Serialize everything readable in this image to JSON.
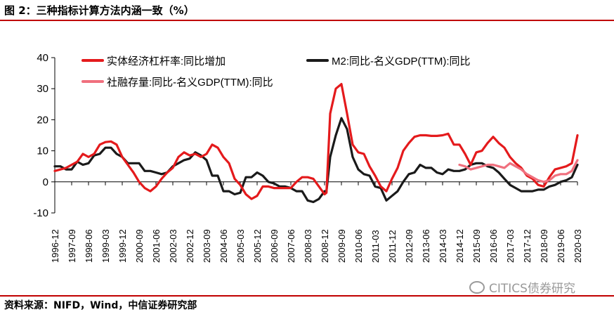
{
  "figure": {
    "title": "图 2：三种指标计算方法内涵一致（%）",
    "source": "资料来源：NIFD，Wind，中信证券研究部",
    "watermark": "CITICS债券研究"
  },
  "chart_data": {
    "type": "line",
    "x_ticks": [
      "1996-12",
      "1997-09",
      "1998-06",
      "1999-03",
      "1999-12",
      "2000-09",
      "2001-06",
      "2002-03",
      "2002-12",
      "2003-09",
      "2004-06",
      "2005-03",
      "2005-12",
      "2006-09",
      "2007-06",
      "2008-03",
      "2008-12",
      "2009-09",
      "2010-06",
      "2011-03",
      "2011-12",
      "2012-09",
      "2013-06",
      "2014-03",
      "2014-12",
      "2015-09",
      "2016-06",
      "2017-03",
      "2017-12",
      "2018-09",
      "2019-06",
      "2020-03"
    ],
    "x_range": [
      "1996-12",
      "2020-03"
    ],
    "ylim": [
      -10,
      40
    ],
    "y_ticks": [
      -10,
      0,
      10,
      20,
      30,
      40
    ],
    "legend_position": "top",
    "series": [
      {
        "name": "实体经济杠杆率:同比增加",
        "color": "#e41a1c",
        "points": [
          [
            "1996-12",
            3.5
          ],
          [
            "1997-06",
            4.5
          ],
          [
            "1997-12",
            6.5
          ],
          [
            "1998-03",
            9
          ],
          [
            "1998-06",
            8
          ],
          [
            "1998-09",
            9
          ],
          [
            "1998-12",
            12
          ],
          [
            "1999-03",
            12.8
          ],
          [
            "1999-06",
            13
          ],
          [
            "1999-09",
            12
          ],
          [
            "1999-12",
            8
          ],
          [
            "2000-03",
            5.5
          ],
          [
            "2000-06",
            3
          ],
          [
            "2000-09",
            0
          ],
          [
            "2000-12",
            -2
          ],
          [
            "2001-03",
            -3
          ],
          [
            "2001-06",
            -1.5
          ],
          [
            "2001-09",
            1
          ],
          [
            "2001-12",
            3
          ],
          [
            "2002-03",
            4.5
          ],
          [
            "2002-06",
            8
          ],
          [
            "2002-09",
            9.5
          ],
          [
            "2002-12",
            8.5
          ],
          [
            "2003-03",
            9
          ],
          [
            "2003-06",
            8
          ],
          [
            "2003-09",
            9
          ],
          [
            "2003-12",
            12
          ],
          [
            "2004-03",
            11
          ],
          [
            "2004-06",
            8
          ],
          [
            "2004-09",
            6
          ],
          [
            "2004-12",
            1
          ],
          [
            "2005-03",
            -1
          ],
          [
            "2005-06",
            -4
          ],
          [
            "2005-09",
            -5.5
          ],
          [
            "2005-12",
            -4.5
          ],
          [
            "2006-03",
            -1.5
          ],
          [
            "2006-06",
            -1.5
          ],
          [
            "2006-09",
            -2
          ],
          [
            "2006-12",
            -2
          ],
          [
            "2007-03",
            -2
          ],
          [
            "2007-06",
            -2
          ],
          [
            "2007-09",
            0
          ],
          [
            "2007-12",
            1.5
          ],
          [
            "2008-03",
            1.5
          ],
          [
            "2008-06",
            1
          ],
          [
            "2008-09",
            -1.5
          ],
          [
            "2008-12",
            -4
          ],
          [
            "2009-01",
            -3.5
          ],
          [
            "2009-03",
            22
          ],
          [
            "2009-06",
            30
          ],
          [
            "2009-09",
            31.5
          ],
          [
            "2009-12",
            22
          ],
          [
            "2010-03",
            12
          ],
          [
            "2010-06",
            9.5
          ],
          [
            "2010-09",
            9
          ],
          [
            "2010-12",
            5
          ],
          [
            "2011-03",
            2
          ],
          [
            "2011-06",
            -1.5
          ],
          [
            "2011-09",
            -3
          ],
          [
            "2011-12",
            1
          ],
          [
            "2012-03",
            4.5
          ],
          [
            "2012-06",
            10
          ],
          [
            "2012-09",
            12.5
          ],
          [
            "2012-12",
            14.5
          ],
          [
            "2013-03",
            15
          ],
          [
            "2013-06",
            15
          ],
          [
            "2013-09",
            14.8
          ],
          [
            "2013-12",
            14.8
          ],
          [
            "2014-03",
            15
          ],
          [
            "2014-06",
            15.5
          ],
          [
            "2014-09",
            12
          ],
          [
            "2014-12",
            12
          ],
          [
            "2015-03",
            9
          ],
          [
            "2015-06",
            5.5
          ],
          [
            "2015-09",
            9.5
          ],
          [
            "2015-12",
            10
          ],
          [
            "2016-03",
            12.5
          ],
          [
            "2016-06",
            14.5
          ],
          [
            "2016-09",
            12.5
          ],
          [
            "2016-12",
            11
          ],
          [
            "2017-03",
            8
          ],
          [
            "2017-06",
            6
          ],
          [
            "2017-09",
            4.5
          ],
          [
            "2017-12",
            2
          ],
          [
            "2018-03",
            1
          ],
          [
            "2018-06",
            -1
          ],
          [
            "2018-09",
            -1.5
          ],
          [
            "2018-12",
            1.5
          ],
          [
            "2019-03",
            4
          ],
          [
            "2019-06",
            4.5
          ],
          [
            "2019-09",
            5
          ],
          [
            "2019-12",
            6
          ],
          [
            "2020-03",
            15
          ]
        ]
      },
      {
        "name": "M2:同比-名义GDP(TTM):同比",
        "color": "#1a1a1a",
        "points": [
          [
            "1996-12",
            5
          ],
          [
            "1997-03",
            5
          ],
          [
            "1997-06",
            4
          ],
          [
            "1997-09",
            4
          ],
          [
            "1997-12",
            6.5
          ],
          [
            "1998-03",
            5.5
          ],
          [
            "1998-06",
            6
          ],
          [
            "1998-09",
            8.5
          ],
          [
            "1998-12",
            9
          ],
          [
            "1999-03",
            11
          ],
          [
            "1999-06",
            11
          ],
          [
            "1999-09",
            9
          ],
          [
            "1999-12",
            8
          ],
          [
            "2000-03",
            6
          ],
          [
            "2000-06",
            6
          ],
          [
            "2000-09",
            6
          ],
          [
            "2000-12",
            3.5
          ],
          [
            "2001-03",
            3.5
          ],
          [
            "2001-06",
            3
          ],
          [
            "2001-09",
            2.5
          ],
          [
            "2001-12",
            3
          ],
          [
            "2002-03",
            5
          ],
          [
            "2002-06",
            6
          ],
          [
            "2002-09",
            7
          ],
          [
            "2002-12",
            7.5
          ],
          [
            "2003-03",
            9.5
          ],
          [
            "2003-06",
            8.5
          ],
          [
            "2003-09",
            7
          ],
          [
            "2003-12",
            2
          ],
          [
            "2004-03",
            2
          ],
          [
            "2004-06",
            -3
          ],
          [
            "2004-09",
            -3
          ],
          [
            "2004-12",
            -4
          ],
          [
            "2005-03",
            -3.5
          ],
          [
            "2005-06",
            1.5
          ],
          [
            "2005-09",
            1.5
          ],
          [
            "2005-12",
            3
          ],
          [
            "2006-03",
            2
          ],
          [
            "2006-06",
            0
          ],
          [
            "2006-09",
            -0.5
          ],
          [
            "2006-12",
            -1.5
          ],
          [
            "2007-03",
            -1.5
          ],
          [
            "2007-06",
            -2
          ],
          [
            "2007-09",
            -3
          ],
          [
            "2007-12",
            -3
          ],
          [
            "2008-03",
            -6
          ],
          [
            "2008-06",
            -6.5
          ],
          [
            "2008-09",
            -5.5
          ],
          [
            "2008-12",
            -3
          ],
          [
            "2009-01",
            -3
          ],
          [
            "2009-03",
            8
          ],
          [
            "2009-06",
            15
          ],
          [
            "2009-09",
            20.5
          ],
          [
            "2009-12",
            17
          ],
          [
            "2010-03",
            8
          ],
          [
            "2010-06",
            4
          ],
          [
            "2010-09",
            2.5
          ],
          [
            "2010-12",
            2
          ],
          [
            "2011-03",
            -1.5
          ],
          [
            "2011-06",
            -2
          ],
          [
            "2011-09",
            -6
          ],
          [
            "2011-12",
            -4.5
          ],
          [
            "2012-03",
            -3
          ],
          [
            "2012-06",
            0
          ],
          [
            "2012-09",
            2.5
          ],
          [
            "2012-12",
            3
          ],
          [
            "2013-03",
            5.5
          ],
          [
            "2013-06",
            4.5
          ],
          [
            "2013-09",
            4.5
          ],
          [
            "2013-12",
            3
          ],
          [
            "2014-03",
            2.5
          ],
          [
            "2014-06",
            4
          ],
          [
            "2014-09",
            3.5
          ],
          [
            "2014-12",
            3.5
          ],
          [
            "2015-03",
            4
          ],
          [
            "2015-06",
            5.5
          ],
          [
            "2015-09",
            6
          ],
          [
            "2015-12",
            6
          ],
          [
            "2016-03",
            5
          ],
          [
            "2016-06",
            4.5
          ],
          [
            "2016-09",
            3
          ],
          [
            "2016-12",
            1
          ],
          [
            "2017-03",
            -1
          ],
          [
            "2017-06",
            -2
          ],
          [
            "2017-09",
            -3
          ],
          [
            "2017-12",
            -3
          ],
          [
            "2018-03",
            -3
          ],
          [
            "2018-06",
            -2.5
          ],
          [
            "2018-09",
            -2.5
          ],
          [
            "2018-12",
            -1.5
          ],
          [
            "2019-03",
            -1
          ],
          [
            "2019-06",
            0
          ],
          [
            "2019-09",
            0.5
          ],
          [
            "2019-12",
            1.5
          ],
          [
            "2020-03",
            5.5
          ]
        ]
      },
      {
        "name": "社融存量:同比-名义GDP(TTM):同比",
        "color": "#f0707e",
        "points": [
          [
            "2014-12",
            5.5
          ],
          [
            "2015-03",
            5
          ],
          [
            "2015-06",
            4
          ],
          [
            "2015-09",
            4.5
          ],
          [
            "2015-12",
            5
          ],
          [
            "2016-03",
            5.5
          ],
          [
            "2016-06",
            5.5
          ],
          [
            "2016-09",
            5
          ],
          [
            "2016-12",
            4.5
          ],
          [
            "2017-03",
            6
          ],
          [
            "2017-06",
            5
          ],
          [
            "2017-09",
            4
          ],
          [
            "2017-12",
            2.5
          ],
          [
            "2018-03",
            1.5
          ],
          [
            "2018-06",
            0.5
          ],
          [
            "2018-09",
            0
          ],
          [
            "2018-12",
            0.5
          ],
          [
            "2019-03",
            2
          ],
          [
            "2019-06",
            2.5
          ],
          [
            "2019-09",
            2.5
          ],
          [
            "2019-12",
            3.5
          ],
          [
            "2020-03",
            7
          ]
        ]
      }
    ]
  }
}
